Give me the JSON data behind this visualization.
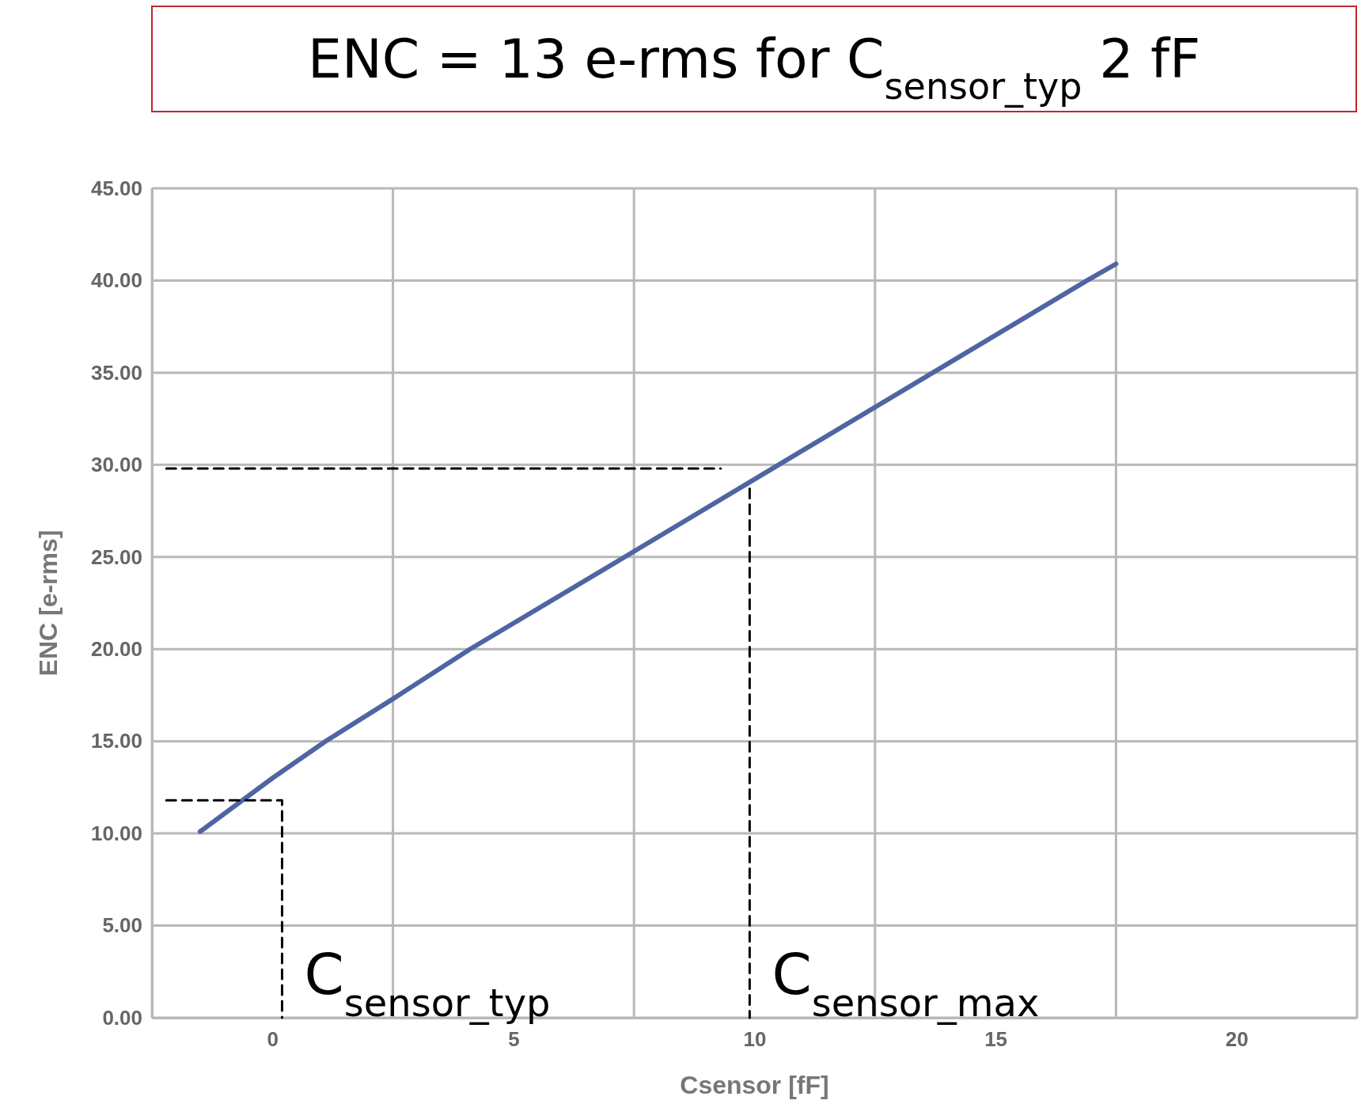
{
  "chart_data": {
    "type": "line",
    "title": "ENC = 13 e-rms for C$_{sensor_typ}$ 2 fF",
    "xlabel": "Csensor [fF]",
    "ylabel": "ENC [e-rms]",
    "series": [
      {
        "color": "#4f65a3",
        "x": [
          -1.5,
          0,
          1.1,
          2.5,
          4.1,
          7.5,
          10.5,
          13.7,
          16.9,
          17.5
        ],
        "values": [
          10.1,
          13.0,
          15,
          17.3,
          20,
          25.3,
          30,
          35,
          40,
          40.9
        ]
      },
      {
        "color": "#000000",
        "line_style": "dashed",
        "x": [
          -2.2,
          0.2,
          0.2
        ],
        "values": [
          11.8,
          11.8,
          0
        ]
      },
      {
        "color": "#000000",
        "line_style": "dashed",
        "x": [
          -2.2,
          9.3
        ],
        "values": [
          29.8,
          29.8
        ]
      },
      {
        "color": "#000000",
        "line_style": "dashed",
        "x": [
          9.9,
          9.9
        ],
        "values": [
          28.7,
          0
        ]
      }
    ],
    "xlim": [
      -2.5,
      22.5
    ],
    "xticks": [
      {
        "value": -2.5,
        "label": null
      },
      0,
      {
        "value": 2.5,
        "label": null
      },
      5,
      {
        "value": 7.5,
        "label": null
      },
      10,
      {
        "value": 12.5,
        "label": null
      },
      15,
      {
        "value": 17.5,
        "label": null
      },
      20,
      {
        "value": 22.5,
        "label": null
      }
    ],
    "ylim": [
      0,
      45
    ],
    "yticks": [
      {
        "value": 0,
        "label": "0.00"
      },
      {
        "value": 5,
        "label": "5.00"
      },
      {
        "value": 10,
        "label": "10.00"
      },
      {
        "value": 15,
        "label": "15.00"
      },
      {
        "value": 20,
        "label": "20.00"
      },
      {
        "value": 25,
        "label": "25.00"
      },
      {
        "value": 30,
        "label": "30.00"
      },
      {
        "value": 35,
        "label": "35.00"
      },
      {
        "value": 40,
        "label": "40.00"
      },
      {
        "value": 45,
        "label": "45.00"
      }
    ],
    "grid": true,
    "line_style": "solid",
    "marker": "none",
    "annotations": [
      {
        "text": "C$_{sensor_typ}$",
        "x": 0.2,
        "y": 0
      },
      {
        "text": "C$_{sensor_max}$",
        "x": 9.9,
        "y": 0
      }
    ]
  }
}
